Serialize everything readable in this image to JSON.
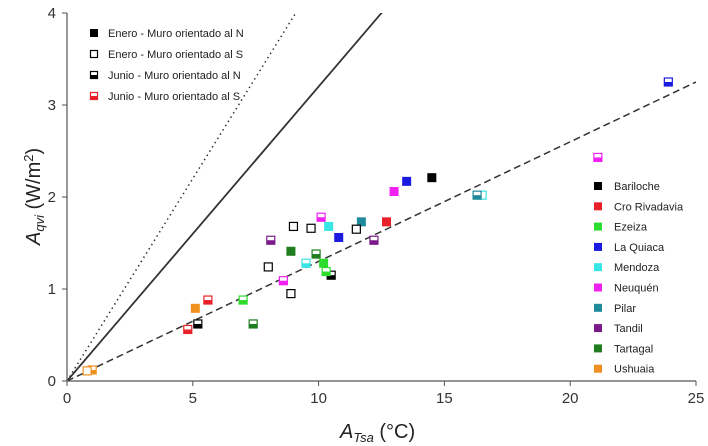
{
  "chart_data": {
    "type": "scatter",
    "xlabel": {
      "main": "A",
      "sub": "Tsa",
      "rest": " (°C)"
    },
    "ylabel": {
      "main": "A",
      "sub": "qvi",
      "rest": " (W/m",
      "sup": "2",
      "end": ")"
    },
    "xlim": [
      0,
      25
    ],
    "ylim": [
      0,
      4
    ],
    "xticks": [
      0,
      5,
      10,
      15,
      20,
      25
    ],
    "yticks": [
      0,
      1,
      2,
      3,
      4
    ],
    "grid": false,
    "series_legend": [
      {
        "label": "Enero - Muro orientado al N",
        "marker": "filled",
        "color": "#000000"
      },
      {
        "label": "Enero - Muro orientado al S",
        "marker": "open",
        "color": "#000000"
      },
      {
        "label": "Junio - Muro orientado al N",
        "marker": "half",
        "color": "#000000"
      },
      {
        "label": "Junio - Muro orientado al S",
        "marker": "half",
        "color": "#e8202a"
      }
    ],
    "cities": [
      {
        "name": "Bariloche",
        "color": "#000000"
      },
      {
        "name": "Cro Rivadavia",
        "color": "#e8202a"
      },
      {
        "name": "Ezeiza",
        "color": "#2ddc2d"
      },
      {
        "name": "La Quiaca",
        "color": "#1a1ae0"
      },
      {
        "name": "Mendoza",
        "color": "#38e5e5"
      },
      {
        "name": "Neuquén",
        "color": "#f020f0"
      },
      {
        "name": "Pilar",
        "color": "#1f8a9a"
      },
      {
        "name": "Tandil",
        "color": "#7a1a8a"
      },
      {
        "name": "Tartagal",
        "color": "#1e7d1e"
      },
      {
        "name": "Ushuaia",
        "color": "#f0901e"
      }
    ],
    "lines": [
      {
        "style": "dotted",
        "slope": 0.44
      },
      {
        "style": "solid",
        "slope": 0.32
      },
      {
        "style": "dashed",
        "slope": 0.13
      }
    ],
    "points": [
      {
        "x": 14.5,
        "y": 2.21,
        "city": 0,
        "marker": "filled"
      },
      {
        "x": 10.5,
        "y": 1.15,
        "city": 0,
        "marker": "half"
      },
      {
        "x": 5.2,
        "y": 0.62,
        "city": 0,
        "marker": "half"
      },
      {
        "x": 12.7,
        "y": 1.73,
        "city": 1,
        "marker": "filled"
      },
      {
        "x": 5.6,
        "y": 0.88,
        "city": 1,
        "marker": "half"
      },
      {
        "x": 4.8,
        "y": 0.56,
        "city": 1,
        "marker": "half"
      },
      {
        "x": 10.2,
        "y": 1.28,
        "city": 2,
        "marker": "filled"
      },
      {
        "x": 7.0,
        "y": 0.88,
        "city": 2,
        "marker": "half"
      },
      {
        "x": 10.3,
        "y": 1.19,
        "city": 2,
        "marker": "half"
      },
      {
        "x": 13.5,
        "y": 2.17,
        "city": 3,
        "marker": "filled"
      },
      {
        "x": 10.8,
        "y": 1.56,
        "city": 3,
        "marker": "filled"
      },
      {
        "x": 23.9,
        "y": 3.25,
        "city": 3,
        "marker": "half"
      },
      {
        "x": 10.4,
        "y": 1.68,
        "city": 4,
        "marker": "filled"
      },
      {
        "x": 16.5,
        "y": 2.02,
        "city": 4,
        "marker": "open"
      },
      {
        "x": 9.5,
        "y": 1.28,
        "city": 4,
        "marker": "half"
      },
      {
        "x": 13.0,
        "y": 2.06,
        "city": 5,
        "marker": "filled"
      },
      {
        "x": 21.1,
        "y": 2.43,
        "city": 5,
        "marker": "half"
      },
      {
        "x": 8.6,
        "y": 1.09,
        "city": 5,
        "marker": "half"
      },
      {
        "x": 10.1,
        "y": 1.78,
        "city": 5,
        "marker": "half"
      },
      {
        "x": 11.7,
        "y": 1.73,
        "city": 6,
        "marker": "filled"
      },
      {
        "x": 16.3,
        "y": 2.02,
        "city": 6,
        "marker": "half"
      },
      {
        "x": 8.1,
        "y": 1.53,
        "city": 7,
        "marker": "half"
      },
      {
        "x": 12.2,
        "y": 1.53,
        "city": 7,
        "marker": "half"
      },
      {
        "x": 8.9,
        "y": 1.41,
        "city": 8,
        "marker": "filled"
      },
      {
        "x": 7.4,
        "y": 0.62,
        "city": 8,
        "marker": "half"
      },
      {
        "x": 9.9,
        "y": 1.38,
        "city": 8,
        "marker": "half"
      },
      {
        "x": 5.1,
        "y": 0.79,
        "city": 9,
        "marker": "filled"
      },
      {
        "x": 1.0,
        "y": 0.12,
        "city": 9,
        "marker": "half"
      },
      {
        "x": 0.8,
        "y": 0.11,
        "city": 9,
        "marker": "open"
      },
      {
        "x": 9.0,
        "y": 1.68,
        "city": 0,
        "marker": "open"
      },
      {
        "x": 8.0,
        "y": 1.24,
        "city": 0,
        "marker": "open"
      },
      {
        "x": 8.9,
        "y": 0.95,
        "city": 0,
        "marker": "open"
      },
      {
        "x": 11.5,
        "y": 1.65,
        "city": 0,
        "marker": "open"
      },
      {
        "x": 9.7,
        "y": 1.66,
        "city": 0,
        "marker": "open"
      }
    ]
  }
}
